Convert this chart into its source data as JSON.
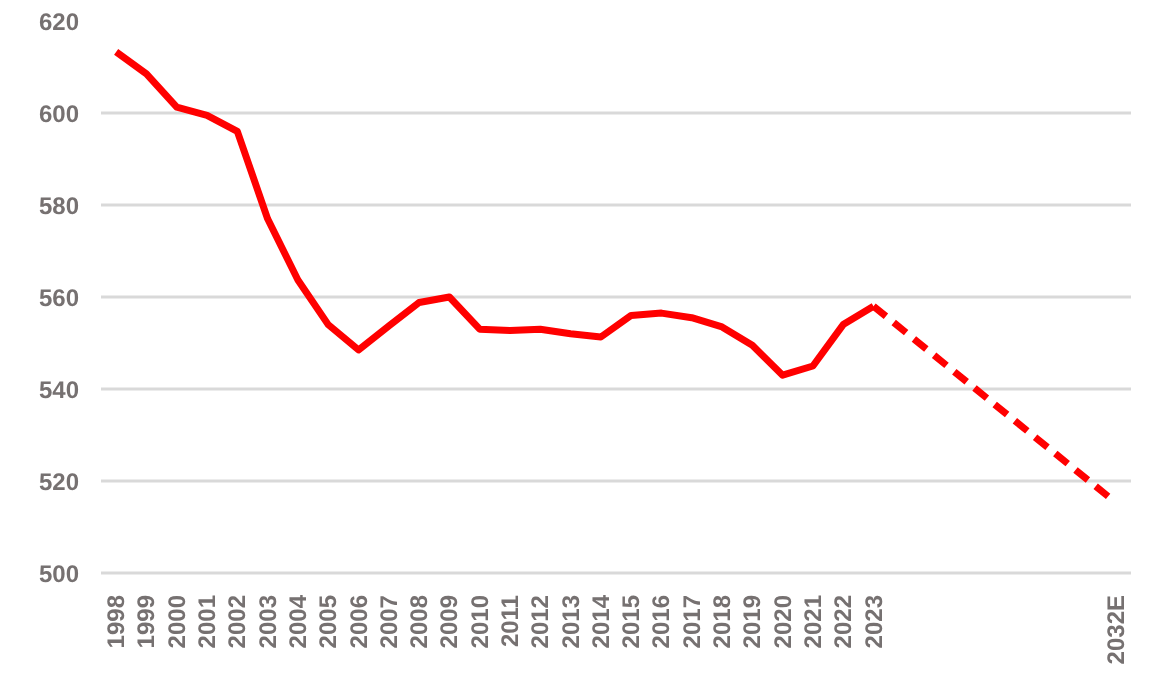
{
  "chart_data": {
    "type": "line",
    "categories": [
      "1998",
      "1999",
      "2000",
      "2001",
      "2002",
      "2003",
      "2004",
      "2005",
      "2006",
      "2007",
      "2008",
      "2009",
      "2010",
      "2011",
      "2012",
      "2013",
      "2014",
      "2015",
      "2016",
      "2017",
      "2018",
      "2019",
      "2020",
      "2021",
      "2022",
      "2023",
      null,
      null,
      null,
      null,
      null,
      null,
      null,
      "2032E"
    ],
    "series": [
      {
        "color": "#ff0000",
        "line_style": "solid",
        "values": [
          613.3,
          608.5,
          601.3,
          599.5,
          596,
          577,
          563.7,
          554,
          548.5,
          553.7,
          558.8,
          560,
          553,
          552.7,
          553,
          552,
          551.3,
          556,
          556.5,
          555.5,
          553.5,
          549.5,
          543,
          545,
          554,
          558,
          null,
          null,
          null,
          null,
          null,
          null,
          null,
          null
        ]
      },
      {
        "color": "#ff0000",
        "line_style": "dashed",
        "values": [
          null,
          null,
          null,
          null,
          null,
          null,
          null,
          null,
          null,
          null,
          null,
          null,
          null,
          null,
          null,
          null,
          null,
          null,
          null,
          null,
          null,
          null,
          null,
          null,
          null,
          558,
          null,
          null,
          null,
          null,
          null,
          null,
          null,
          515.3
        ]
      }
    ],
    "ylim": [
      500,
      620
    ],
    "yticks": [
      500,
      520,
      540,
      560,
      580,
      600,
      620
    ],
    "grid": "y"
  }
}
